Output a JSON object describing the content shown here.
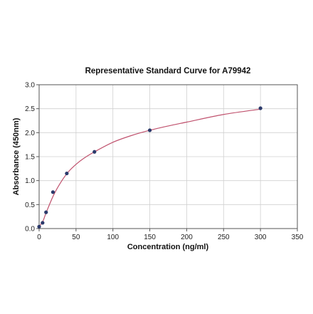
{
  "colors": {
    "curve": "#c0526e",
    "points": "#2b3a6b",
    "grid": "#d0d0d0",
    "axis": "#555555"
  },
  "chart_data": {
    "type": "scatter",
    "title": "Representative Standard Curve for A79942",
    "xlabel": "Concentration (ng/ml)",
    "ylabel": "Absorbance (450nm)",
    "xlim": [
      0,
      350
    ],
    "ylim": [
      0,
      3.0
    ],
    "xticks": [
      0,
      50,
      100,
      150,
      200,
      250,
      300,
      350
    ],
    "yticks": [
      0.0,
      0.5,
      1.0,
      1.5,
      2.0,
      2.5,
      3.0
    ],
    "xtick_labels": [
      "0",
      "50",
      "100",
      "150",
      "200",
      "250",
      "300",
      "350"
    ],
    "ytick_labels": [
      "0.0",
      "0.5",
      "1.0",
      "1.5",
      "2.0",
      "2.5",
      "3.0"
    ],
    "grid": true,
    "legend": "none",
    "points": [
      {
        "x": 0,
        "y": 0.04
      },
      {
        "x": 4.69,
        "y": 0.12
      },
      {
        "x": 9.38,
        "y": 0.34
      },
      {
        "x": 18.75,
        "y": 0.76
      },
      {
        "x": 37.5,
        "y": 1.15
      },
      {
        "x": 75,
        "y": 1.6
      },
      {
        "x": 150,
        "y": 2.05
      },
      {
        "x": 300,
        "y": 2.51
      }
    ],
    "fit": {
      "type": "smooth curve through points",
      "x": [
        0,
        5,
        10,
        20,
        30,
        40,
        50,
        60,
        75,
        100,
        125,
        150,
        175,
        200,
        250,
        300
      ],
      "y": [
        0.04,
        0.15,
        0.35,
        0.71,
        0.98,
        1.19,
        1.34,
        1.46,
        1.6,
        1.8,
        1.94,
        2.05,
        2.14,
        2.22,
        2.38,
        2.49
      ]
    }
  }
}
